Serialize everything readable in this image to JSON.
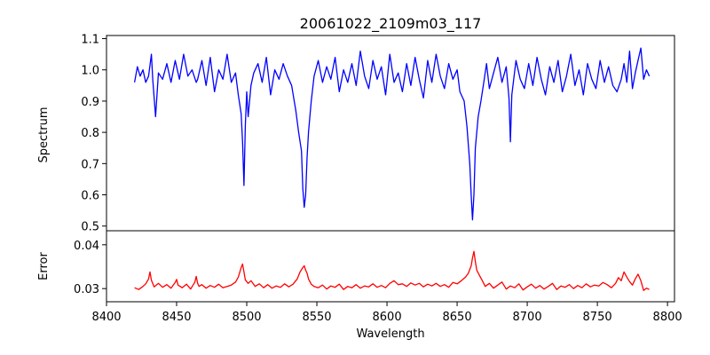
{
  "chart_data": {
    "type": "line",
    "title": "20061022_2109m03_117",
    "x_label": "Wavelength",
    "x_range": [
      8400,
      8805
    ],
    "x_ticks": [
      "8400",
      "8450",
      "8500",
      "8550",
      "8600",
      "8650",
      "8700",
      "8750",
      "8800"
    ],
    "grid": false,
    "panels": [
      {
        "id": "spectrum",
        "ylabel": "Spectrum",
        "ylim": [
          0.485,
          1.11
        ],
        "y_ticks": [
          "0.5",
          "0.6",
          "0.7",
          "0.8",
          "0.9",
          "1.0",
          "1.1"
        ],
        "series": [
          {
            "color": "#0000ff",
            "x": [
              8420,
              8422,
              8424,
              8426,
              8428,
              8430,
              8432,
              8433,
              8435,
              8437,
              8440,
              8443,
              8446,
              8449,
              8452,
              8455,
              8458,
              8461,
              8464,
              8465,
              8468,
              8471,
              8474,
              8477,
              8480,
              8483,
              8486,
              8489,
              8492,
              8494,
              8496,
              8497,
              8498,
              8499,
              8500,
              8501,
              8503,
              8505,
              8508,
              8511,
              8514,
              8517,
              8520,
              8523,
              8526,
              8529,
              8532,
              8535,
              8537,
              8539,
              8540,
              8541,
              8542,
              8543,
              8544,
              8546,
              8548,
              8551,
              8554,
              8557,
              8560,
              8563,
              8566,
              8569,
              8572,
              8575,
              8578,
              8581,
              8584,
              8587,
              8590,
              8593,
              8596,
              8599,
              8602,
              8605,
              8608,
              8611,
              8614,
              8617,
              8620,
              8623,
              8626,
              8629,
              8632,
              8635,
              8638,
              8641,
              8644,
              8647,
              8650,
              8652,
              8655,
              8657,
              8659,
              8660,
              8661,
              8662,
              8663,
              8665,
              8667,
              8669,
              8671,
              8673,
              8676,
              8679,
              8682,
              8685,
              8687,
              8688,
              8689,
              8692,
              8695,
              8698,
              8701,
              8704,
              8707,
              8710,
              8713,
              8716,
              8719,
              8722,
              8725,
              8728,
              8731,
              8734,
              8737,
              8740,
              8743,
              8746,
              8749,
              8752,
              8755,
              8758,
              8761,
              8764,
              8767,
              8769,
              8771,
              8773,
              8775,
              8777,
              8779,
              8781,
              8783,
              8785,
              8787
            ],
            "y": [
              0.96,
              1.01,
              0.98,
              1.0,
              0.96,
              0.98,
              1.05,
              0.97,
              0.85,
              0.99,
              0.97,
              1.02,
              0.96,
              1.03,
              0.97,
              1.05,
              0.98,
              1.0,
              0.96,
              0.97,
              1.03,
              0.95,
              1.04,
              0.93,
              1.0,
              0.97,
              1.05,
              0.96,
              0.99,
              0.92,
              0.86,
              0.77,
              0.63,
              0.82,
              0.93,
              0.85,
              0.95,
              0.99,
              1.02,
              0.96,
              1.04,
              0.92,
              1.0,
              0.97,
              1.02,
              0.98,
              0.95,
              0.87,
              0.8,
              0.74,
              0.62,
              0.56,
              0.6,
              0.72,
              0.8,
              0.9,
              0.98,
              1.03,
              0.96,
              1.01,
              0.97,
              1.04,
              0.93,
              1.0,
              0.96,
              1.02,
              0.95,
              1.06,
              0.98,
              0.94,
              1.03,
              0.97,
              1.01,
              0.92,
              1.05,
              0.96,
              0.99,
              0.93,
              1.02,
              0.95,
              1.04,
              0.97,
              0.91,
              1.03,
              0.96,
              1.05,
              0.98,
              0.94,
              1.02,
              0.97,
              1.0,
              0.93,
              0.9,
              0.82,
              0.7,
              0.6,
              0.52,
              0.6,
              0.75,
              0.85,
              0.9,
              0.96,
              1.02,
              0.94,
              0.99,
              1.04,
              0.96,
              1.01,
              0.91,
              0.77,
              0.92,
              1.03,
              0.97,
              0.94,
              1.02,
              0.95,
              1.04,
              0.97,
              0.92,
              1.01,
              0.96,
              1.03,
              0.93,
              0.98,
              1.05,
              0.95,
              1.0,
              0.92,
              1.02,
              0.97,
              0.94,
              1.03,
              0.96,
              1.01,
              0.95,
              0.93,
              0.97,
              1.02,
              0.96,
              1.06,
              0.94,
              0.99,
              1.03,
              1.07,
              0.97,
              1.0,
              0.98
            ]
          }
        ]
      },
      {
        "id": "error",
        "ylabel": "Error",
        "ylim": [
          0.027,
          0.0432
        ],
        "y_ticks": [
          "0.03",
          "0.04"
        ],
        "series": [
          {
            "color": "#ff0000",
            "x": [
              8420,
              8423,
              8426,
              8428,
              8430,
              8431,
              8432,
              8434,
              8437,
              8440,
              8443,
              8446,
              8449,
              8450,
              8451,
              8454,
              8457,
              8460,
              8463,
              8464,
              8465,
              8466,
              8468,
              8471,
              8474,
              8477,
              8480,
              8483,
              8486,
              8489,
              8492,
              8494,
              8496,
              8497,
              8498,
              8499,
              8501,
              8503,
              8506,
              8509,
              8512,
              8515,
              8518,
              8521,
              8524,
              8527,
              8530,
              8533,
              8536,
              8538,
              8540,
              8541,
              8542,
              8543,
              8544,
              8546,
              8548,
              8551,
              8554,
              8557,
              8560,
              8563,
              8566,
              8569,
              8572,
              8575,
              8578,
              8581,
              8584,
              8587,
              8590,
              8593,
              8596,
              8599,
              8602,
              8605,
              8608,
              8611,
              8614,
              8617,
              8620,
              8623,
              8626,
              8629,
              8632,
              8635,
              8638,
              8641,
              8644,
              8647,
              8650,
              8653,
              8656,
              8658,
              8660,
              8661,
              8662,
              8663,
              8664,
              8666,
              8668,
              8670,
              8673,
              8676,
              8679,
              8682,
              8685,
              8688,
              8691,
              8694,
              8697,
              8700,
              8703,
              8706,
              8709,
              8712,
              8715,
              8718,
              8721,
              8724,
              8727,
              8730,
              8733,
              8736,
              8739,
              8742,
              8745,
              8748,
              8751,
              8754,
              8757,
              8760,
              8763,
              8765,
              8767,
              8769,
              8771,
              8773,
              8775,
              8777,
              8779,
              8781,
              8783,
              8785,
              8787
            ],
            "y": [
              0.0302,
              0.0298,
              0.0305,
              0.0311,
              0.0322,
              0.0338,
              0.0319,
              0.0304,
              0.0312,
              0.0303,
              0.0309,
              0.0301,
              0.0314,
              0.0321,
              0.0308,
              0.0302,
              0.031,
              0.0299,
              0.0315,
              0.0328,
              0.0312,
              0.0305,
              0.0309,
              0.0301,
              0.0307,
              0.0303,
              0.031,
              0.0302,
              0.0305,
              0.0308,
              0.0315,
              0.0326,
              0.0348,
              0.0356,
              0.0338,
              0.032,
              0.0312,
              0.0318,
              0.0305,
              0.0311,
              0.0302,
              0.0309,
              0.0301,
              0.0306,
              0.0303,
              0.0311,
              0.0304,
              0.031,
              0.0322,
              0.0338,
              0.0348,
              0.0352,
              0.0342,
              0.0335,
              0.0322,
              0.031,
              0.0305,
              0.0302,
              0.0308,
              0.0299,
              0.0306,
              0.0303,
              0.031,
              0.0298,
              0.0305,
              0.0302,
              0.0309,
              0.0301,
              0.0306,
              0.0304,
              0.0311,
              0.0303,
              0.0307,
              0.0302,
              0.0312,
              0.0318,
              0.0309,
              0.0311,
              0.0305,
              0.0313,
              0.0308,
              0.0312,
              0.0304,
              0.031,
              0.0306,
              0.0312,
              0.0305,
              0.0309,
              0.0303,
              0.0314,
              0.0311,
              0.0318,
              0.0326,
              0.0335,
              0.0352,
              0.037,
              0.0385,
              0.0362,
              0.0342,
              0.033,
              0.0318,
              0.0305,
              0.0312,
              0.0301,
              0.0308,
              0.0315,
              0.0299,
              0.0306,
              0.0302,
              0.0311,
              0.0297,
              0.0304,
              0.031,
              0.0301,
              0.0307,
              0.0299,
              0.0305,
              0.0312,
              0.0298,
              0.0306,
              0.0303,
              0.0309,
              0.03,
              0.0307,
              0.0302,
              0.0311,
              0.0304,
              0.0308,
              0.0306,
              0.0314,
              0.0309,
              0.0302,
              0.0312,
              0.0325,
              0.0318,
              0.0338,
              0.0326,
              0.0316,
              0.0308,
              0.0322,
              0.0333,
              0.0318,
              0.0296,
              0.0301,
              0.0298
            ]
          }
        ]
      }
    ]
  }
}
